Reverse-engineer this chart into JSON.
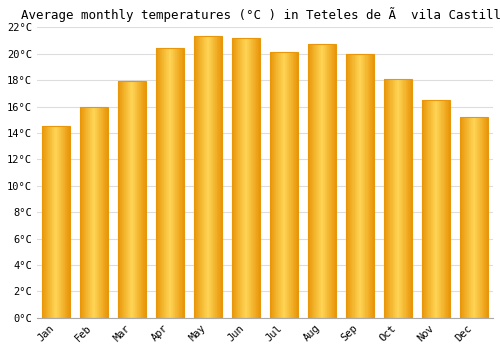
{
  "title": "Average monthly temperatures (°C ) in Teteles de Ã  vila Castillo",
  "months": [
    "Jan",
    "Feb",
    "Mar",
    "Apr",
    "May",
    "Jun",
    "Jul",
    "Aug",
    "Sep",
    "Oct",
    "Nov",
    "Dec"
  ],
  "values": [
    14.5,
    16.0,
    17.9,
    20.4,
    21.3,
    21.2,
    20.1,
    20.7,
    20.0,
    18.1,
    16.5,
    15.2
  ],
  "bar_color_outer": "#E8960A",
  "bar_color_inner": "#FFD555",
  "background_color": "#FFFFFF",
  "grid_color": "#DDDDDD",
  "ylim": [
    0,
    22
  ],
  "ytick_step": 2,
  "title_fontsize": 9,
  "tick_fontsize": 7.5,
  "font_family": "monospace"
}
